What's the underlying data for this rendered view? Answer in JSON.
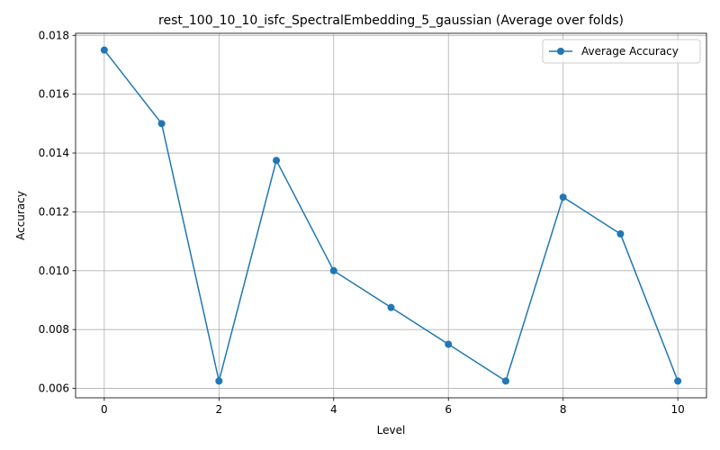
{
  "chart_data": {
    "type": "line",
    "title": "rest_100_10_10_isfc_SpectralEmbedding_5_gaussian (Average over folds)",
    "xlabel": "Level",
    "ylabel": "Accuracy",
    "x": [
      0,
      1,
      2,
      3,
      4,
      5,
      6,
      7,
      8,
      9,
      10
    ],
    "series": [
      {
        "name": "Average Accuracy",
        "color": "#1f77b4",
        "marker": "circle",
        "values": [
          0.0175,
          0.015,
          0.00625,
          0.01375,
          0.01,
          0.00875,
          0.0075,
          0.00625,
          0.0125,
          0.01125,
          0.00625
        ]
      }
    ],
    "xlim": [
      -0.5,
      10.5
    ],
    "ylim": [
      0.00568,
      0.01807
    ],
    "xticks": [
      0,
      2,
      4,
      6,
      8,
      10
    ],
    "yticks": [
      0.006,
      0.008,
      0.01,
      0.012,
      0.014,
      0.016,
      0.018
    ],
    "ytick_labels": [
      "0.006",
      "0.008",
      "0.010",
      "0.012",
      "0.014",
      "0.016",
      "0.018"
    ],
    "grid": true,
    "legend_position": "top-right"
  }
}
